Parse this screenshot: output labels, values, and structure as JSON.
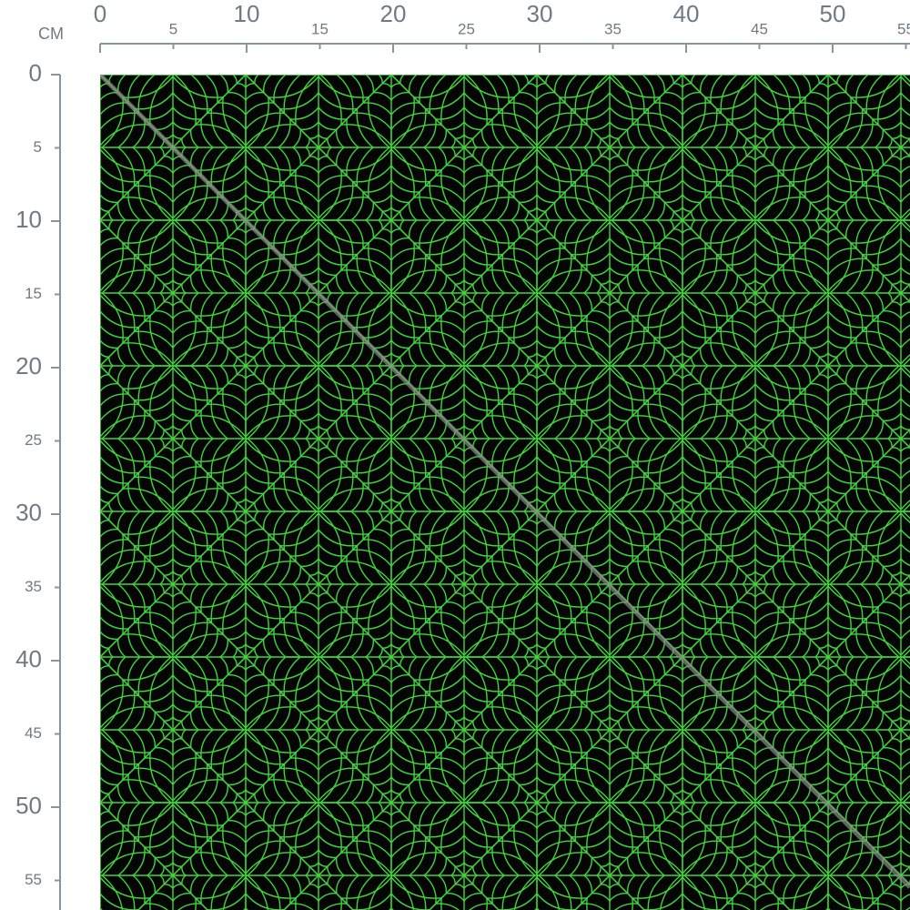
{
  "ruler": {
    "unit": "CM",
    "top_labels": [
      0,
      5,
      10,
      15,
      20,
      25,
      30,
      35,
      40,
      45,
      50,
      55
    ],
    "left_labels": [
      0,
      5,
      10,
      15,
      20,
      25,
      30,
      35,
      40,
      45,
      50,
      55
    ]
  }
}
